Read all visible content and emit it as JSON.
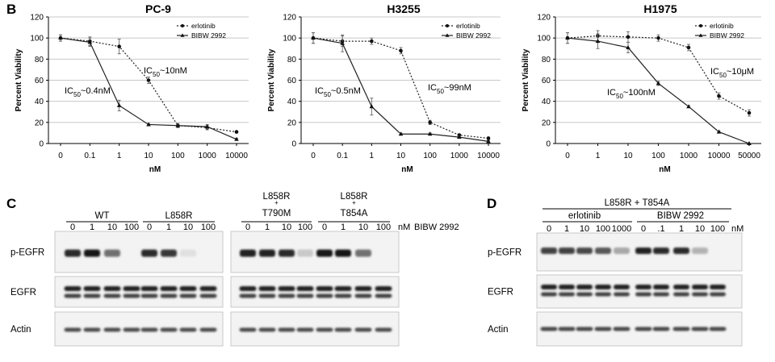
{
  "panel_labels": {
    "B": "B",
    "C": "C",
    "D": "D"
  },
  "chart_data": [
    {
      "type": "line",
      "title": "PC-9",
      "xlabel": "nM",
      "ylabel": "Percent Viability",
      "categories": [
        "0",
        "0.1",
        "1",
        "10",
        "100",
        "1000",
        "10000"
      ],
      "ylim": [
        0,
        120
      ],
      "yticks": [
        0,
        20,
        40,
        60,
        80,
        100,
        120
      ],
      "grid": true,
      "legend": "top-right",
      "series": [
        {
          "name": "erlotinib",
          "style": "dotted",
          "marker": "circle",
          "values": [
            100,
            97,
            92,
            60,
            17,
            15,
            11
          ],
          "errors": [
            3,
            4,
            7,
            3,
            2,
            2,
            1
          ]
        },
        {
          "name": "BIBW 2992",
          "style": "solid",
          "marker": "triangle",
          "values": [
            100,
            96,
            36,
            18,
            17,
            16,
            4
          ],
          "errors": [
            3,
            4,
            5,
            1,
            1,
            2,
            1
          ]
        }
      ],
      "annotations": [
        {
          "pre": "IC",
          "sub": "50",
          "post": "~10nM"
        },
        {
          "pre": "IC",
          "sub": "50",
          "post": "~0.4nM"
        }
      ]
    },
    {
      "type": "line",
      "title": "H3255",
      "xlabel": "nM",
      "ylabel": "Percent Viability",
      "categories": [
        "0",
        "0.1",
        "1",
        "10",
        "100",
        "1000",
        "10000"
      ],
      "ylim": [
        0,
        120
      ],
      "yticks": [
        0,
        20,
        40,
        60,
        80,
        100,
        120
      ],
      "grid": true,
      "legend": "top-right",
      "series": [
        {
          "name": "erlotinib",
          "style": "dotted",
          "marker": "circle",
          "values": [
            100,
            97,
            97,
            88,
            20,
            8,
            5
          ],
          "errors": [
            5,
            5,
            3,
            3,
            2,
            1,
            1
          ]
        },
        {
          "name": "BIBW 2992",
          "style": "solid",
          "marker": "triangle",
          "values": [
            100,
            95,
            35,
            9,
            9,
            6,
            2
          ],
          "errors": [
            5,
            8,
            8,
            1,
            1,
            1,
            1
          ]
        }
      ],
      "annotations": [
        {
          "pre": "IC",
          "sub": "50",
          "post": "~0.5nM"
        },
        {
          "pre": "IC",
          "sub": "50",
          "post": "~99nM"
        }
      ]
    },
    {
      "type": "line",
      "title": "H1975",
      "xlabel": "nM",
      "ylabel": "Percent Viability",
      "categories": [
        "0",
        "1",
        "10",
        "100",
        "1000",
        "10000",
        "50000"
      ],
      "ylim": [
        0,
        120
      ],
      "yticks": [
        0,
        20,
        40,
        60,
        80,
        100,
        120
      ],
      "grid": true,
      "legend": "top-right",
      "series": [
        {
          "name": "erlotinib",
          "style": "dotted",
          "marker": "circle",
          "values": [
            100,
            102,
            101,
            100,
            91,
            45,
            29
          ],
          "errors": [
            5,
            5,
            5,
            3,
            3,
            3,
            3
          ]
        },
        {
          "name": "BIBW 2992",
          "style": "solid",
          "marker": "triangle",
          "values": [
            100,
            97,
            91,
            57,
            35,
            11,
            0
          ],
          "errors": [
            5,
            7,
            5,
            2,
            1,
            1,
            0
          ]
        }
      ],
      "annotations": [
        {
          "pre": "IC",
          "sub": "50",
          "post": "~10μM"
        },
        {
          "pre": "IC",
          "sub": "50",
          "post": "~100nM"
        }
      ]
    }
  ],
  "blot_c": {
    "groups": [
      "WT",
      "L858R",
      "L858R\n+\nT790M",
      "L858R\n+\nT854A"
    ],
    "doses": [
      "0",
      "1",
      "10",
      "100"
    ],
    "unit": "nM",
    "drug": "BIBW 2992",
    "rows": [
      "p-EGFR",
      "EGFR",
      "Actin"
    ],
    "pegfr_intensity": [
      [
        0.85,
        0.95,
        0.55,
        0.0
      ],
      [
        0.85,
        0.8,
        0.05,
        0.0
      ],
      [
        0.9,
        0.9,
        0.85,
        0.15
      ],
      [
        0.95,
        0.95,
        0.55,
        0.0
      ]
    ]
  },
  "blot_d": {
    "header": "L858R + T854A",
    "groups": [
      "erlotinib",
      "BIBW 2992"
    ],
    "doses_erlotinib": [
      "0",
      "1",
      "10",
      "100",
      "1000"
    ],
    "doses_bibw": [
      "0",
      ".1",
      "1",
      "10",
      "100"
    ],
    "unit": "nM",
    "rows": [
      "p-EGFR",
      "EGFR",
      "Actin"
    ],
    "pegfr_intensity": [
      0.75,
      0.75,
      0.72,
      0.65,
      0.3,
      0.9,
      0.85,
      0.85,
      0.25,
      0.0
    ]
  }
}
